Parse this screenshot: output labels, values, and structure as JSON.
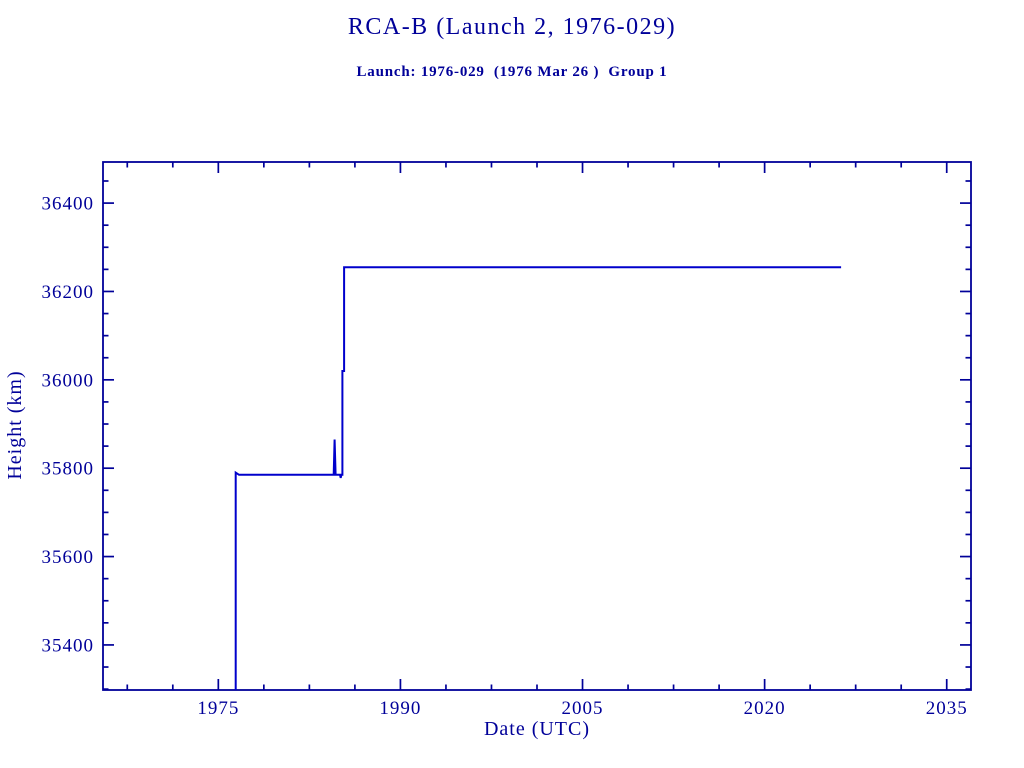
{
  "chart_data": {
    "type": "line",
    "title": "RCA-B (Launch 2, 1976-029)",
    "subtitle": "Launch: 1976-029  (1976 Mar 26 )  Group 1",
    "xlabel": "Date (UTC)",
    "ylabel": "Height (km)",
    "xlim": [
      1965.5,
      2037.0
    ],
    "ylim": [
      35298,
      36493
    ],
    "x_major_ticks": [
      1975,
      1990,
      2005,
      2020,
      2035
    ],
    "x_major_tick_labels": [
      "1975",
      "1990",
      "2005",
      "2020",
      "2035"
    ],
    "x_minor_step_years": 3.75,
    "y_major_ticks": [
      35400,
      35600,
      35800,
      36000,
      36200,
      36400
    ],
    "y_major_tick_labels": [
      "35400",
      "35600",
      "35800",
      "36000",
      "36200",
      "36400"
    ],
    "y_minor_step_km": 50,
    "grid": false,
    "legend": "none",
    "background_color": "#FFFFFF",
    "axis_color": "#000099",
    "line_color": "#0000CC",
    "series": [
      {
        "name": "Height (km)",
        "points": [
          [
            1976.43,
            35298
          ],
          [
            1976.43,
            35790
          ],
          [
            1976.7,
            35785
          ],
          [
            1984.5,
            35785
          ],
          [
            1984.58,
            35865
          ],
          [
            1984.66,
            35785
          ],
          [
            1985.02,
            35785
          ],
          [
            1985.08,
            35778
          ],
          [
            1985.14,
            35785
          ],
          [
            1985.22,
            35785
          ],
          [
            1985.22,
            36020
          ],
          [
            1985.36,
            36020
          ],
          [
            1985.36,
            36255
          ],
          [
            2026.3,
            36255
          ]
        ]
      }
    ]
  }
}
